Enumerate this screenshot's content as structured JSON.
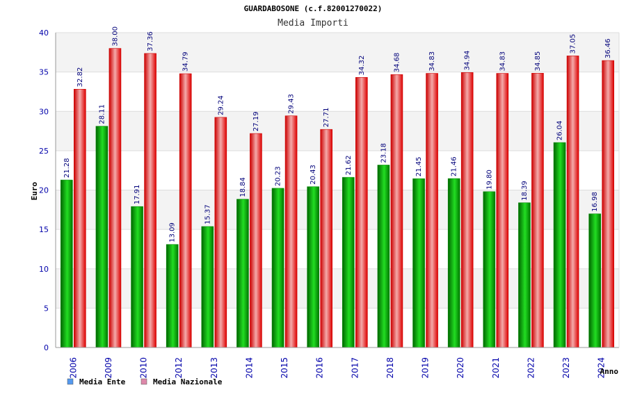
{
  "chart_data": {
    "type": "bar",
    "title": "GUARDABOSONE (c.f.82001270022)",
    "subtitle": "Media Importi",
    "xlabel": "Anno",
    "ylabel": "Euro",
    "ylim": [
      0,
      40
    ],
    "yticks": [
      0,
      5,
      10,
      15,
      20,
      25,
      30,
      35,
      40
    ],
    "grid": true,
    "legend_position": "bottom-left",
    "categories": [
      "2006",
      "2009",
      "2010",
      "2012",
      "2013",
      "2014",
      "2015",
      "2016",
      "2017",
      "2018",
      "2019",
      "2020",
      "2021",
      "2022",
      "2023",
      "2024"
    ],
    "series": [
      {
        "name": "Media Ente",
        "color": "#00b000",
        "legend_color": "#5599ee",
        "values": [
          21.28,
          28.11,
          17.91,
          13.09,
          15.37,
          18.84,
          20.23,
          20.43,
          21.62,
          23.18,
          21.45,
          21.46,
          19.8,
          18.39,
          26.04,
          16.98
        ],
        "labels": [
          "21.28",
          "28.11",
          "17.91",
          "13.09",
          "15.37",
          "18.84",
          "20.23",
          "20.43",
          "21.62",
          "23.18",
          "21.45",
          "21.46",
          "19.80",
          "18.39",
          "26.04",
          "16.98"
        ]
      },
      {
        "name": "Media Nazionale",
        "color": "#ee0000",
        "legend_color": "#dd88aa",
        "values": [
          32.82,
          38.0,
          37.36,
          34.79,
          29.24,
          27.19,
          29.43,
          27.71,
          34.32,
          34.68,
          34.83,
          34.94,
          34.83,
          34.85,
          37.05,
          36.46
        ],
        "labels": [
          "32.82",
          "38.00",
          "37.36",
          "34.79",
          "29.24",
          "27.19",
          "29.43",
          "27.71",
          "34.32",
          "34.68",
          "34.83",
          "34.94",
          "34.83",
          "34.85",
          "37.05",
          "36.46"
        ]
      }
    ]
  }
}
